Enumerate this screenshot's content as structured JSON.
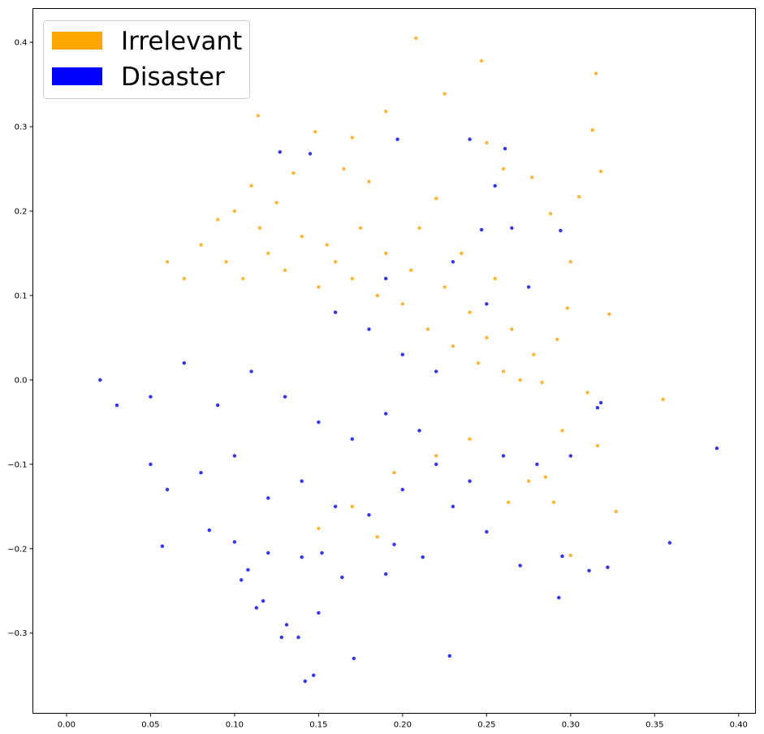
{
  "chart_data": {
    "type": "scatter",
    "title": "",
    "xlabel": "",
    "ylabel": "",
    "xlim": [
      -0.02,
      0.41
    ],
    "ylim": [
      -0.395,
      0.44
    ],
    "x_ticks": [
      0.0,
      0.05,
      0.1,
      0.15,
      0.2,
      0.25,
      0.3,
      0.35,
      0.4
    ],
    "x_tick_labels": [
      "0.00",
      "0.05",
      "0.10",
      "0.15",
      "0.20",
      "0.25",
      "0.30",
      "0.35",
      "0.40"
    ],
    "y_ticks": [
      -0.3,
      -0.2,
      -0.1,
      0.0,
      0.1,
      0.2,
      0.3,
      0.4
    ],
    "y_tick_labels": [
      "−0.3",
      "−0.2",
      "−0.1",
      "0.0",
      "0.1",
      "0.2",
      "0.3",
      "0.4"
    ],
    "grid": false,
    "legend_position": "top-left",
    "series": [
      {
        "name": "Irrelevant",
        "color": "#FFA500",
        "points": [
          [
            0.208,
            0.405
          ],
          [
            0.247,
            0.378
          ],
          [
            0.315,
            0.363
          ],
          [
            0.114,
            0.313
          ],
          [
            0.225,
            0.339
          ],
          [
            0.19,
            0.318
          ],
          [
            0.148,
            0.294
          ],
          [
            0.313,
            0.296
          ],
          [
            0.17,
            0.287
          ],
          [
            0.25,
            0.281
          ],
          [
            0.26,
            0.25
          ],
          [
            0.318,
            0.247
          ],
          [
            0.277,
            0.24
          ],
          [
            0.305,
            0.217
          ],
          [
            0.288,
            0.197
          ],
          [
            0.135,
            0.245
          ],
          [
            0.11,
            0.23
          ],
          [
            0.165,
            0.25
          ],
          [
            0.18,
            0.235
          ],
          [
            0.22,
            0.215
          ],
          [
            0.3,
            0.14
          ],
          [
            0.298,
            0.085
          ],
          [
            0.323,
            0.078
          ],
          [
            0.292,
            0.048
          ],
          [
            0.278,
            0.03
          ],
          [
            0.27,
            0.0
          ],
          [
            0.283,
            -0.003
          ],
          [
            0.26,
            0.01
          ],
          [
            0.245,
            0.02
          ],
          [
            0.355,
            -0.023
          ],
          [
            0.31,
            -0.015
          ],
          [
            0.316,
            -0.078
          ],
          [
            0.295,
            -0.06
          ],
          [
            0.285,
            -0.115
          ],
          [
            0.275,
            -0.12
          ],
          [
            0.29,
            -0.145
          ],
          [
            0.327,
            -0.156
          ],
          [
            0.3,
            -0.208
          ],
          [
            0.263,
            -0.145
          ],
          [
            0.15,
            -0.176
          ],
          [
            0.185,
            -0.186
          ],
          [
            0.17,
            -0.15
          ],
          [
            0.195,
            -0.11
          ],
          [
            0.22,
            -0.09
          ],
          [
            0.24,
            -0.07
          ],
          [
            0.06,
            0.14
          ],
          [
            0.07,
            0.12
          ],
          [
            0.08,
            0.16
          ],
          [
            0.09,
            0.19
          ],
          [
            0.095,
            0.14
          ],
          [
            0.1,
            0.2
          ],
          [
            0.105,
            0.12
          ],
          [
            0.115,
            0.18
          ],
          [
            0.12,
            0.15
          ],
          [
            0.125,
            0.21
          ],
          [
            0.13,
            0.13
          ],
          [
            0.14,
            0.17
          ],
          [
            0.15,
            0.11
          ],
          [
            0.155,
            0.16
          ],
          [
            0.16,
            0.14
          ],
          [
            0.17,
            0.12
          ],
          [
            0.175,
            0.18
          ],
          [
            0.185,
            0.1
          ],
          [
            0.19,
            0.15
          ],
          [
            0.2,
            0.09
          ],
          [
            0.205,
            0.13
          ],
          [
            0.21,
            0.18
          ],
          [
            0.215,
            0.06
          ],
          [
            0.225,
            0.11
          ],
          [
            0.23,
            0.04
          ],
          [
            0.235,
            0.15
          ],
          [
            0.24,
            0.08
          ],
          [
            0.25,
            0.05
          ],
          [
            0.255,
            0.12
          ],
          [
            0.265,
            0.06
          ]
        ]
      },
      {
        "name": "Disaster",
        "color": "#0000FF",
        "points": [
          [
            0.387,
            -0.081
          ],
          [
            0.359,
            -0.193
          ],
          [
            0.322,
            -0.222
          ],
          [
            0.311,
            -0.226
          ],
          [
            0.293,
            -0.258
          ],
          [
            0.295,
            -0.209
          ],
          [
            0.3,
            -0.09
          ],
          [
            0.316,
            -0.033
          ],
          [
            0.318,
            -0.027
          ],
          [
            0.294,
            0.177
          ],
          [
            0.261,
            0.274
          ],
          [
            0.247,
            0.178
          ],
          [
            0.24,
            0.285
          ],
          [
            0.197,
            0.285
          ],
          [
            0.127,
            0.27
          ],
          [
            0.145,
            0.268
          ],
          [
            0.171,
            -0.33
          ],
          [
            0.142,
            -0.357
          ],
          [
            0.147,
            -0.35
          ],
          [
            0.128,
            -0.305
          ],
          [
            0.138,
            -0.305
          ],
          [
            0.131,
            -0.29
          ],
          [
            0.15,
            -0.276
          ],
          [
            0.113,
            -0.27
          ],
          [
            0.117,
            -0.262
          ],
          [
            0.108,
            -0.225
          ],
          [
            0.104,
            -0.237
          ],
          [
            0.12,
            -0.205
          ],
          [
            0.14,
            -0.21
          ],
          [
            0.152,
            -0.205
          ],
          [
            0.164,
            -0.234
          ],
          [
            0.19,
            -0.23
          ],
          [
            0.195,
            -0.195
          ],
          [
            0.212,
            -0.21
          ],
          [
            0.228,
            -0.327
          ],
          [
            0.1,
            -0.192
          ],
          [
            0.085,
            -0.178
          ],
          [
            0.057,
            -0.197
          ],
          [
            0.06,
            -0.13
          ],
          [
            0.05,
            -0.1
          ],
          [
            0.08,
            -0.11
          ],
          [
            0.1,
            -0.09
          ],
          [
            0.12,
            -0.14
          ],
          [
            0.14,
            -0.12
          ],
          [
            0.16,
            -0.15
          ],
          [
            0.18,
            -0.16
          ],
          [
            0.2,
            -0.13
          ],
          [
            0.22,
            -0.1
          ],
          [
            0.24,
            -0.12
          ],
          [
            0.26,
            -0.09
          ],
          [
            0.28,
            -0.1
          ],
          [
            0.25,
            -0.18
          ],
          [
            0.27,
            -0.22
          ],
          [
            0.23,
            -0.15
          ],
          [
            0.21,
            -0.06
          ],
          [
            0.19,
            -0.04
          ],
          [
            0.17,
            -0.07
          ],
          [
            0.15,
            -0.05
          ],
          [
            0.13,
            -0.02
          ],
          [
            0.11,
            0.01
          ],
          [
            0.09,
            -0.03
          ],
          [
            0.07,
            0.02
          ],
          [
            0.05,
            -0.02
          ],
          [
            0.03,
            -0.03
          ],
          [
            0.02,
            0.0
          ],
          [
            0.16,
            0.08
          ],
          [
            0.18,
            0.06
          ],
          [
            0.2,
            0.03
          ],
          [
            0.22,
            0.01
          ],
          [
            0.19,
            0.12
          ],
          [
            0.23,
            0.14
          ],
          [
            0.25,
            0.09
          ],
          [
            0.275,
            0.11
          ],
          [
            0.265,
            0.18
          ],
          [
            0.255,
            0.23
          ]
        ]
      }
    ]
  }
}
